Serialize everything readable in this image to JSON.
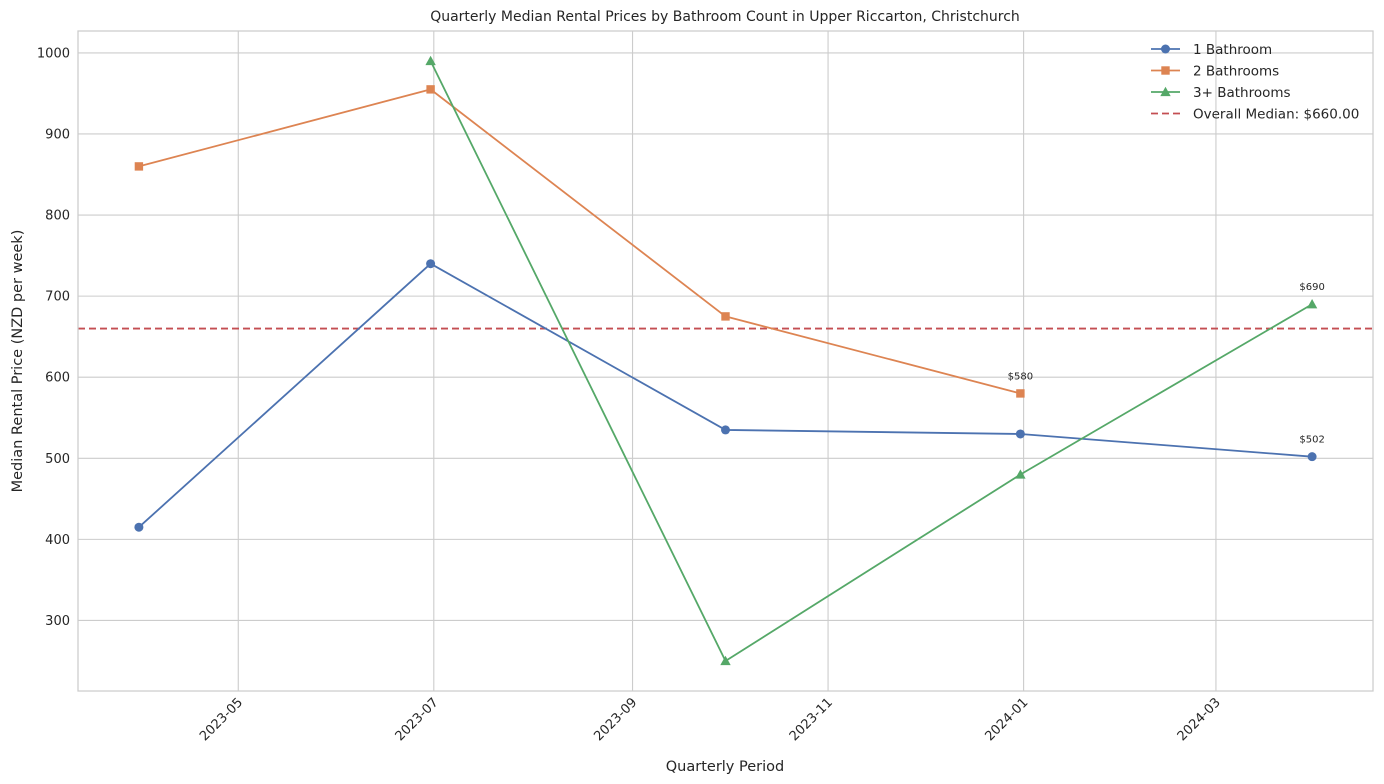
{
  "chart_data": {
    "type": "line",
    "title": "Quarterly Median Rental Prices by Bathroom Count in Upper Riccarton, Christchurch",
    "xlabel": "Quarterly Period",
    "ylabel": "Median Rental Price (NZD per week)",
    "x_ticks": [
      "2023-05-01",
      "2023-07-01",
      "2023-09-01",
      "2023-11-01",
      "2024-01-01",
      "2024-03-01"
    ],
    "x_tick_labels": [
      "2023-05",
      "2023-07",
      "2023-09",
      "2023-11",
      "2024-01",
      "2024-03"
    ],
    "xlim": [
      "2023-03-12",
      "2024-04-19"
    ],
    "y_ticks": [
      300,
      400,
      500,
      600,
      700,
      800,
      900,
      1000
    ],
    "y_tick_labels": [
      "300",
      "400",
      "500",
      "600",
      "700",
      "800",
      "900",
      "1000"
    ],
    "ylim": [
      213,
      1027
    ],
    "grid": true,
    "legend_position": "top-right",
    "series": [
      {
        "name": "1 Bathroom",
        "color": "#4c72b0",
        "marker": "circle",
        "points": [
          {
            "x": "2023-03-31",
            "y": 415
          },
          {
            "x": "2023-06-30",
            "y": 740
          },
          {
            "x": "2023-09-30",
            "y": 535
          },
          {
            "x": "2023-12-31",
            "y": 530
          },
          {
            "x": "2024-03-31",
            "y": 502
          }
        ]
      },
      {
        "name": "2 Bathrooms",
        "color": "#dd8452",
        "marker": "square",
        "points": [
          {
            "x": "2023-03-31",
            "y": 860
          },
          {
            "x": "2023-06-30",
            "y": 955
          },
          {
            "x": "2023-09-30",
            "y": 675
          },
          {
            "x": "2023-12-31",
            "y": 580
          }
        ]
      },
      {
        "name": "3+ Bathrooms",
        "color": "#55a868",
        "marker": "triangle",
        "points": [
          {
            "x": "2023-06-30",
            "y": 990
          },
          {
            "x": "2023-09-30",
            "y": 250
          },
          {
            "x": "2023-12-31",
            "y": 480
          },
          {
            "x": "2024-03-31",
            "y": 690
          }
        ]
      }
    ],
    "reference_line": {
      "name": "Overall Median: $660.00",
      "y": 660,
      "color": "#c44e52",
      "style": "dashed"
    },
    "annotations": [
      {
        "x": "2023-12-31",
        "y": 580,
        "text": "$580"
      },
      {
        "x": "2024-03-31",
        "y": 690,
        "text": "$690"
      },
      {
        "x": "2024-03-31",
        "y": 502,
        "text": "$502"
      }
    ]
  }
}
